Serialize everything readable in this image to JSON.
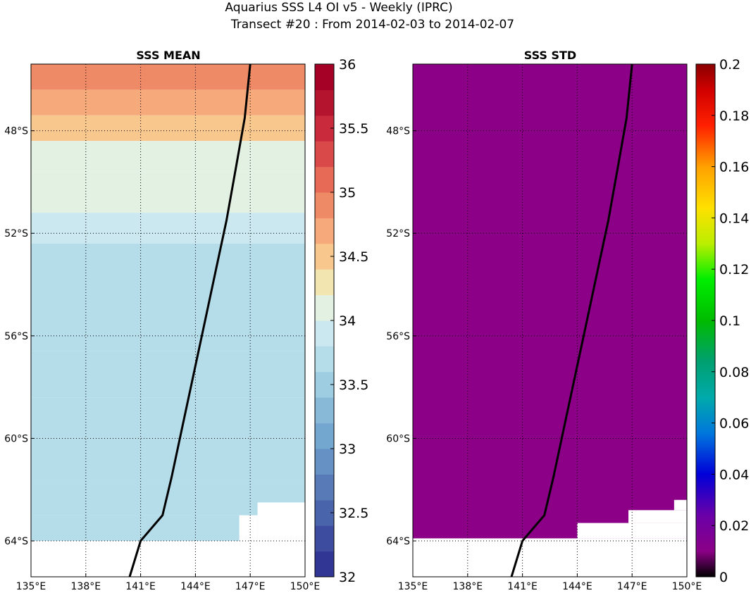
{
  "header": {
    "title_line1": "Aquarius SSS L4 OI v5 - Weekly (IPRC)",
    "title_line2": "Transect #20 : From 2014-02-03 to 2014-02-07"
  },
  "chart_data": [
    {
      "type": "heatmap",
      "title": "SSS MEAN",
      "x_ticks": [
        "135°E",
        "138°E",
        "141°E",
        "144°E",
        "147°E",
        "150°E"
      ],
      "x_tick_values": [
        135,
        138,
        141,
        144,
        147,
        150
      ],
      "y_ticks": [
        "48°S",
        "52°S",
        "56°S",
        "60°S",
        "64°S"
      ],
      "y_tick_values": [
        -48,
        -52,
        -56,
        -60,
        -64
      ],
      "xlim": [
        135,
        150
      ],
      "ylim": [
        -65.4,
        -45.4
      ],
      "grid": true,
      "colorbar": {
        "min": 32,
        "max": 36,
        "tick_values": [
          32,
          32.5,
          33,
          33.5,
          34,
          34.5,
          35,
          35.5,
          36
        ],
        "tick_labels": [
          "32",
          "32.5",
          "33",
          "33.5",
          "34",
          "34.5",
          "35",
          "35.5",
          "36"
        ],
        "colormap": "RdYlBu_r",
        "levels": 20
      },
      "latitude_bands": [
        {
          "lat": [
            -46.4,
            -45.4
          ],
          "sss": 34.9
        },
        {
          "lat": [
            -47.4,
            -46.4
          ],
          "sss": 34.65
        },
        {
          "lat": [
            -48.4,
            -47.4
          ],
          "sss": 34.5
        },
        {
          "lat": [
            -49.6,
            -48.4
          ],
          "sss": 34.15
        },
        {
          "lat": [
            -51.2,
            -49.6
          ],
          "sss": 34.05
        },
        {
          "lat": [
            -52.4,
            -51.2
          ],
          "sss": 33.9
        },
        {
          "lat": [
            -53.6,
            -52.4
          ],
          "sss": 33.75
        },
        {
          "lat": [
            -55.4,
            -53.6
          ],
          "sss": 33.7
        },
        {
          "lat": [
            -56.6,
            -55.4
          ],
          "sss": 33.75
        },
        {
          "lat": [
            -58.4,
            -56.6
          ],
          "sss": 33.7
        },
        {
          "lat": [
            -60.4,
            -58.4
          ],
          "sss": 33.8
        },
        {
          "lat": [
            -61.8,
            -60.4
          ],
          "sss": 33.65
        },
        {
          "lat": [
            -63.0,
            -61.8
          ],
          "sss": 33.75
        },
        {
          "lat": [
            -64.0,
            -63.0
          ],
          "sss": 33.75
        }
      ],
      "land_mask": [
        {
          "lon": [
            135,
            150
          ],
          "lat": [
            -65.4,
            -64.0
          ]
        },
        {
          "lon": [
            147.4,
            150
          ],
          "lat": [
            -64.0,
            -62.5
          ]
        },
        {
          "lon": [
            146.4,
            147.4
          ],
          "lat": [
            -64.0,
            -63.0
          ]
        }
      ]
    },
    {
      "type": "heatmap",
      "title": "SSS STD",
      "x_ticks": [
        "135°E",
        "138°E",
        "141°E",
        "144°E",
        "147°E",
        "150°E"
      ],
      "x_tick_values": [
        135,
        138,
        141,
        144,
        147,
        150
      ],
      "y_ticks": [
        "48°S",
        "52°S",
        "56°S",
        "60°S",
        "64°S"
      ],
      "y_tick_values": [
        -48,
        -52,
        -56,
        -60,
        -64
      ],
      "xlim": [
        135,
        150
      ],
      "ylim": [
        -65.4,
        -45.4
      ],
      "grid": true,
      "value": 0,
      "fill_color": "#8b0086",
      "colorbar": {
        "min": 0,
        "max": 0.2,
        "tick_values": [
          0,
          0.02,
          0.04,
          0.06,
          0.08,
          0.1,
          0.12,
          0.14,
          0.16,
          0.18,
          0.2
        ],
        "tick_labels": [
          "0",
          "0.02",
          "0.04",
          "0.06",
          "0.08",
          "0.1",
          "0.12",
          "0.14",
          "0.16",
          "0.18",
          "0.2"
        ],
        "colormap": "spectral"
      },
      "land_mask": [
        {
          "lon": [
            135,
            150
          ],
          "lat": [
            -65.4,
            -63.9
          ]
        },
        {
          "lon": [
            144,
            150
          ],
          "lat": [
            -63.9,
            -63.3
          ]
        },
        {
          "lon": [
            146.8,
            150
          ],
          "lat": [
            -63.3,
            -62.8
          ]
        },
        {
          "lon": [
            149.3,
            150
          ],
          "lat": [
            -62.8,
            -62.4
          ]
        }
      ]
    }
  ],
  "transect": {
    "color": "#000000",
    "points": [
      {
        "lon": 147.0,
        "lat": -45.4
      },
      {
        "lon": 146.7,
        "lat": -47.5
      },
      {
        "lon": 146.2,
        "lat": -49.5
      },
      {
        "lon": 145.7,
        "lat": -51.5
      },
      {
        "lon": 145.1,
        "lat": -53.5
      },
      {
        "lon": 144.5,
        "lat": -55.5
      },
      {
        "lon": 143.9,
        "lat": -57.5
      },
      {
        "lon": 143.3,
        "lat": -59.5
      },
      {
        "lon": 142.7,
        "lat": -61.5
      },
      {
        "lon": 142.2,
        "lat": -63.0
      },
      {
        "lon": 141.0,
        "lat": -64.0
      },
      {
        "lon": 140.4,
        "lat": -65.4
      }
    ]
  }
}
